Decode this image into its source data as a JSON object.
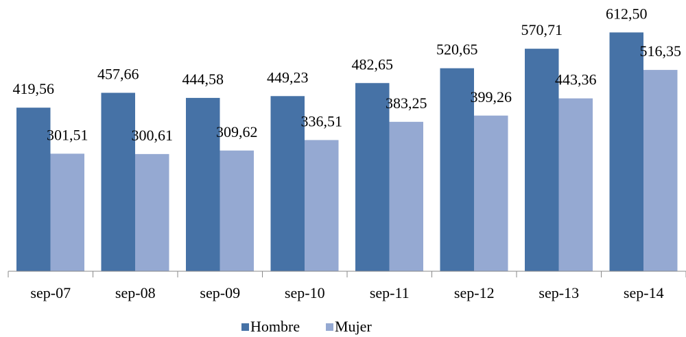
{
  "chart_data": {
    "type": "bar",
    "categories": [
      "sep-07",
      "sep-08",
      "sep-09",
      "sep-10",
      "sep-11",
      "sep-12",
      "sep-13",
      "sep-14"
    ],
    "series": [
      {
        "name": "Hombre",
        "color": "#4672a6",
        "values": [
          419.56,
          457.66,
          444.58,
          449.23,
          482.65,
          520.65,
          570.71,
          612.5
        ],
        "value_labels": [
          "419,56",
          "457,66",
          "444,58",
          "449,23",
          "482,65",
          "520,65",
          "570,71",
          "612,50"
        ]
      },
      {
        "name": "Mujer",
        "color": "#95a9d2",
        "values": [
          301.51,
          300.61,
          309.62,
          336.51,
          383.25,
          399.26,
          443.36,
          516.35
        ],
        "value_labels": [
          "301,51",
          "300,61",
          "309,62",
          "336,51",
          "383,25",
          "399,26",
          "443,36",
          "516,35"
        ]
      }
    ],
    "ylim": [
      0,
      650
    ],
    "legend": "bottom"
  }
}
